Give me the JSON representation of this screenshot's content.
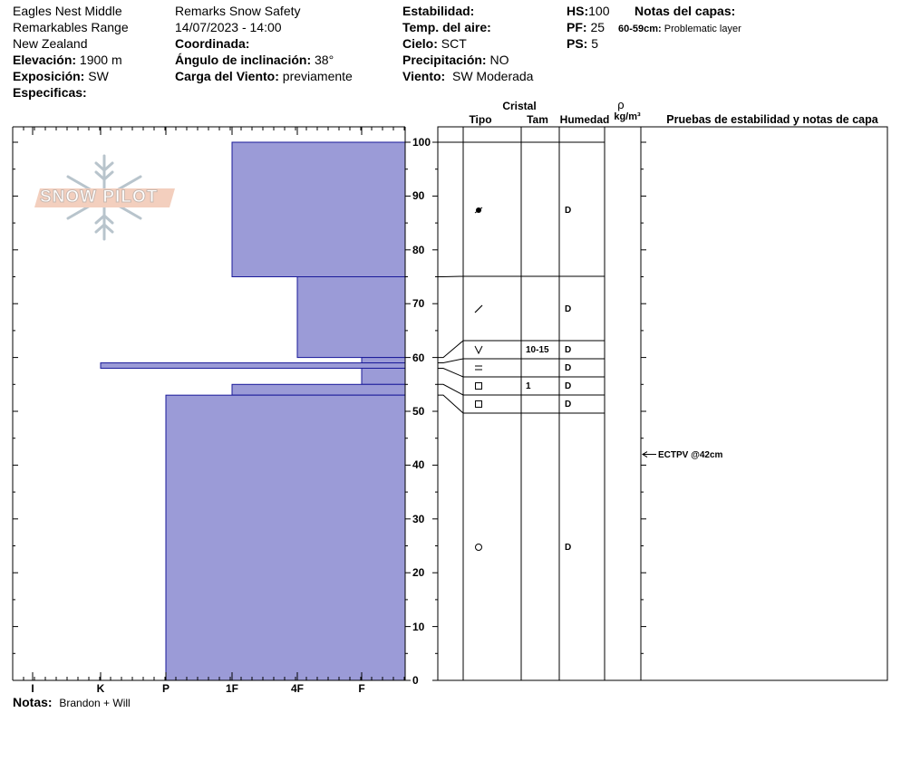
{
  "header": {
    "location": "Eagles Nest Middle",
    "range": "Remarkables Range",
    "country": "New Zealand",
    "elevation_label": "Elevación:",
    "elevation": "1900 m",
    "aspect_label": "Exposición:",
    "aspect": "SW",
    "specifics_label": "Especificas:",
    "observer": "Remarks Snow Safety",
    "datetime": "14/07/2023 - 14:00",
    "coord_label": "Coordinada:",
    "slope_label": "Ángulo de inclinación:",
    "slope": "38°",
    "windload_label": "Carga del Viento:",
    "windload": "previamente",
    "stability_label": "Estabilidad:",
    "airtemp_label": "Temp. del aire:",
    "sky_label": "Cielo:",
    "sky": "SCT",
    "precip_label": "Precipitación:",
    "precip": "NO",
    "wind_label": "Viento:",
    "wind": "SW Moderada",
    "hs_label": "HS:",
    "hs": "100",
    "pf_label": "PF:",
    "pf": "25",
    "ps_label": "PS:",
    "ps": "5",
    "layer_notes_label": "Notas del capas:",
    "layer_note_range": "60-59cm:",
    "layer_note_text": "Problematic layer"
  },
  "logo": {
    "text": "SNOW PILOT"
  },
  "columns": {
    "crystal": "Cristal",
    "type": "Tipo",
    "size": "Tam",
    "moisture": "Humedad",
    "density_symbol": "ρ",
    "density_unit": "kg/m³",
    "tests": "Pruebas de estabilidad y notas de capa"
  },
  "hardness_axis": [
    "I",
    "K",
    "P",
    "1F",
    "4F",
    "F"
  ],
  "depth_axis": [
    "100",
    "90",
    "80",
    "70",
    "60",
    "50",
    "40",
    "30",
    "20",
    "10",
    "0"
  ],
  "colors": {
    "layer_fill": "#9b9bd7",
    "layer_edge": "#1a1a9a"
  },
  "layers": [
    {
      "top": 100,
      "bottom": 75,
      "hardness": "1F",
      "grain": "precipitation-particle",
      "size": "",
      "moisture": "D"
    },
    {
      "top": 75,
      "bottom": 60,
      "hardness": "4F",
      "grain": "decomposing-fragment",
      "size": "",
      "moisture": "D"
    },
    {
      "top": 60,
      "bottom": 59,
      "hardness": "F",
      "grain": "surface-hoar",
      "size": "10-15",
      "moisture": "D"
    },
    {
      "top": 59,
      "bottom": 58,
      "hardness": "K",
      "grain": "melt-freeze-crust",
      "size": "",
      "moisture": "D"
    },
    {
      "top": 58,
      "bottom": 55,
      "hardness": "F",
      "grain": "faceted",
      "size": "1",
      "moisture": "D"
    },
    {
      "top": 55,
      "bottom": 53,
      "hardness": "1F",
      "grain": "faceted",
      "size": "",
      "moisture": "D"
    },
    {
      "top": 53,
      "bottom": 0,
      "hardness": "P",
      "grain": "rounded",
      "size": "",
      "moisture": "D"
    }
  ],
  "test": {
    "text": "ECTPV @42cm",
    "depth": 42
  },
  "notes": {
    "label": "Notas:",
    "text": "Brandon + Will"
  }
}
